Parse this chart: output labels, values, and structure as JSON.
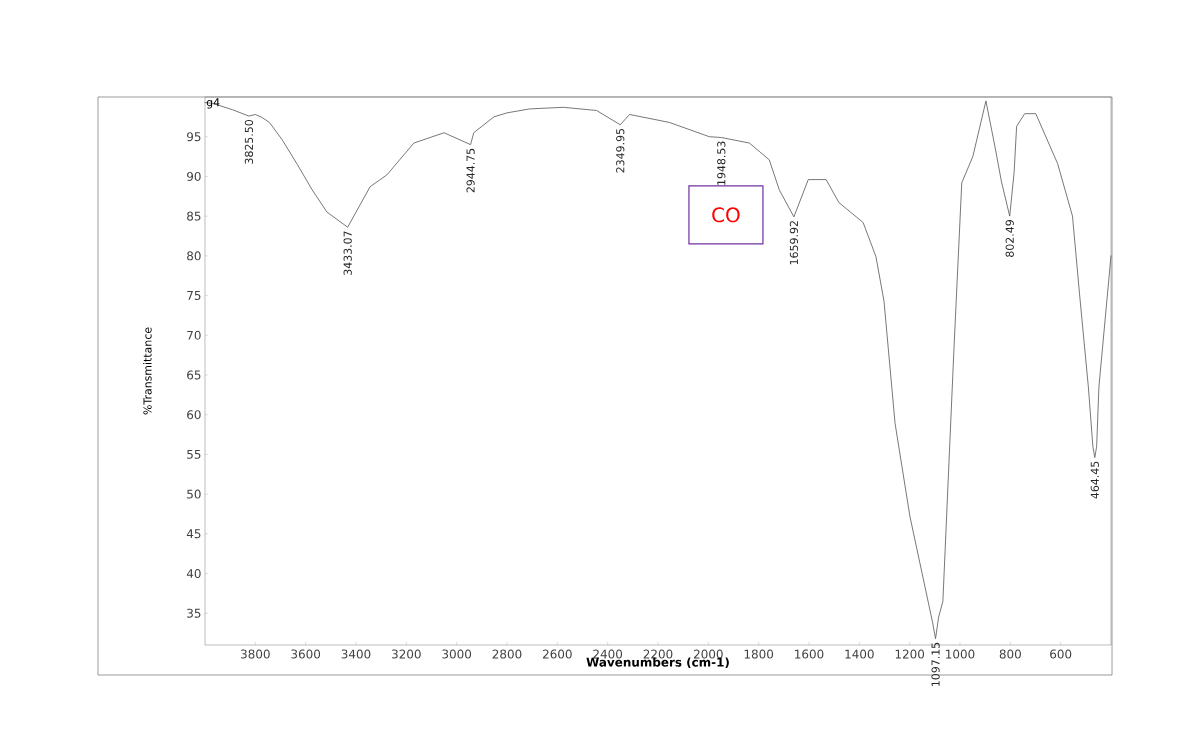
{
  "chart_data": {
    "type": "line",
    "xlabel": "Wavenumbers (cm-1)",
    "ylabel": "%Transmittance",
    "xlim": [
      4000,
      400
    ],
    "ylim": [
      31,
      100
    ],
    "xticks": [
      3800,
      3600,
      3400,
      3200,
      3000,
      2800,
      2600,
      2400,
      2200,
      2000,
      1800,
      1600,
      1400,
      1200,
      1000,
      800,
      600
    ],
    "yticks": [
      35,
      40,
      45,
      50,
      55,
      60,
      65,
      70,
      75,
      80,
      85,
      90,
      95
    ],
    "grid": false,
    "marker": "none",
    "line_style": "solid",
    "series": [
      {
        "color": "#555555",
        "x": [
          4000,
          3970,
          3891,
          3825.5,
          3800,
          3772,
          3744,
          3693,
          3633,
          3574,
          3515,
          3433.07,
          3344,
          3277,
          3170,
          3050,
          2944.75,
          2932,
          2852,
          2800,
          2710,
          2575,
          2444,
          2349.95,
          2313,
          2155,
          1996,
          1948.53,
          1837,
          1758,
          1718,
          1659.92,
          1603,
          1532,
          1481,
          1385,
          1334,
          1302,
          1258,
          1199,
          1110,
          1097.15,
          1085,
          1068,
          1024,
          993,
          949,
          897,
          862,
          835,
          802.49,
          785,
          775,
          743,
          699,
          612,
          553,
          525,
          490,
          472,
          464.45,
          457,
          448,
          400
        ],
        "values": [
          99.3,
          99.2,
          98.4,
          97.6,
          97.8,
          97.4,
          96.8,
          94.6,
          91.5,
          88.3,
          85.5,
          83.6,
          88.7,
          90.2,
          94.2,
          95.5,
          94.0,
          95.5,
          97.5,
          98.0,
          98.5,
          98.7,
          98.3,
          96.5,
          97.8,
          96.8,
          95.0,
          94.9,
          94.2,
          92.1,
          88.3,
          84.9,
          89.6,
          89.6,
          86.7,
          84.2,
          79.9,
          74.3,
          58.9,
          47.2,
          34.0,
          31.8,
          34.5,
          36.5,
          68.3,
          89.2,
          92.5,
          99.5,
          93.9,
          89.3,
          85.0,
          90.5,
          96.3,
          97.9,
          97.9,
          91.6,
          85.0,
          75.2,
          63.5,
          56.0,
          54.6,
          56.0,
          63.5,
          80.0
        ]
      }
    ],
    "annotations": [
      "g4",
      "CO",
      {
        "text": "3825.50",
        "x": 3825.5,
        "y": 97.6
      },
      {
        "text": "3433.07",
        "x": 3433.07,
        "y": 83.6
      },
      {
        "text": "2944.75",
        "x": 2944.75,
        "y": 94.0
      },
      {
        "text": "2349.95",
        "x": 2349.95,
        "y": 96.5
      },
      {
        "text": "1948.53",
        "x": 1948.53,
        "y": 94.9
      },
      {
        "text": "1659.92",
        "x": 1659.92,
        "y": 84.9
      },
      {
        "text": "1097.15",
        "x": 1097.15,
        "y": 31.8
      },
      {
        "text": "802.49",
        "x": 802.49,
        "y": 85.0
      },
      {
        "text": "464.45",
        "x": 464.45,
        "y": 54.6
      }
    ]
  }
}
